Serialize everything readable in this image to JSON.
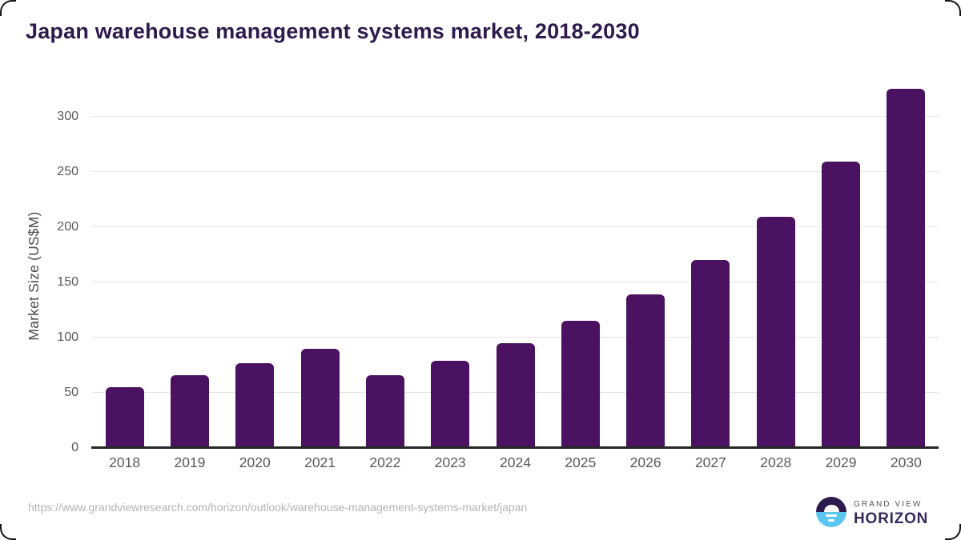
{
  "title": "Japan warehouse management systems market, 2018-2030",
  "chart_data": {
    "type": "bar",
    "title": "Japan warehouse management systems market, 2018-2030",
    "categories": [
      "2018",
      "2019",
      "2020",
      "2021",
      "2022",
      "2023",
      "2024",
      "2025",
      "2026",
      "2027",
      "2028",
      "2029",
      "2030"
    ],
    "values": [
      55,
      66,
      77,
      90,
      66,
      79,
      95,
      115,
      139,
      170,
      209,
      259,
      325
    ],
    "xlabel": "",
    "ylabel": "Market Size (US$M)",
    "ylim": [
      0,
      333
    ],
    "yticks": [
      0,
      50,
      100,
      150,
      200,
      250,
      300
    ],
    "grid": true,
    "legend_position": "none",
    "bar_color": "#4a1260",
    "grid_color": "#e5e5e5"
  },
  "footer": {
    "source_url": "https://www.grandviewresearch.com/horizon/outlook/warehouse-management-systems-market/japan",
    "logo": {
      "icon": "horizon-sun-over-water-icon",
      "top_text": "GRAND VIEW",
      "bottom_text": "HORIZON"
    }
  },
  "colors": {
    "title": "#2e1a4d",
    "bar": "#4a1260",
    "axis_labels": "#595959",
    "axis_line": "#262626",
    "gridline": "#e5e5e5",
    "source_url": "#b4b4b4",
    "logo_purple": "#2e1b4e",
    "logo_blue": "#5bc6f0",
    "logo_wordmark": "#392a5c"
  }
}
